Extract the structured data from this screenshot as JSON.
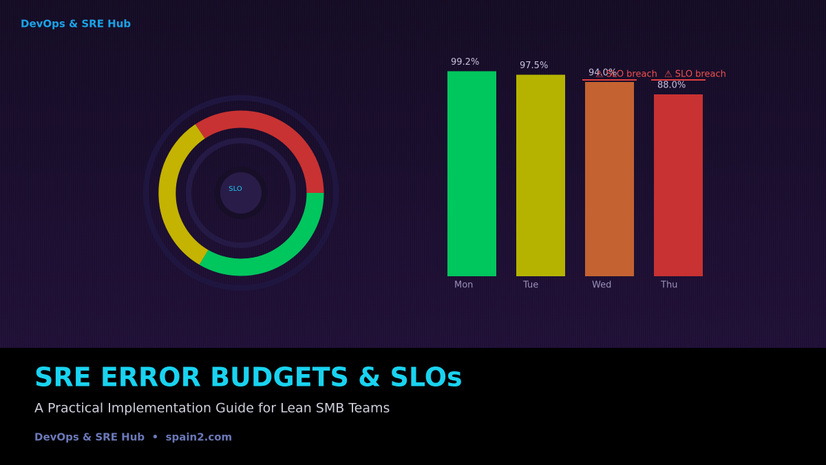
{
  "header": {
    "brand": "DevOps & SRE Hub"
  },
  "donut": {
    "label": "SLO"
  },
  "chart_data": {
    "type": "bar",
    "categories": [
      "Mon",
      "Tue",
      "Wed",
      "Thu"
    ],
    "values": [
      99.2,
      97.5,
      94.0,
      88.0
    ],
    "value_labels": [
      "99.2%",
      "97.5%",
      "94.0%",
      "88.0%"
    ],
    "colors": [
      "#00c65e",
      "#b5b300",
      "#c46231",
      "#c83232"
    ],
    "ylim": [
      0,
      100
    ],
    "annotations": [
      {
        "text": "⚠ SLO breach",
        "x": "Wed"
      },
      {
        "text": "⚠ SLO breach",
        "x": "Thu"
      }
    ]
  },
  "footer": {
    "title": "SRE ERROR BUDGETS & SLOs",
    "subtitle": "A Practical Implementation Guide for Lean SMB Teams",
    "byline": "DevOps & SRE Hub  •  spain2.com"
  }
}
